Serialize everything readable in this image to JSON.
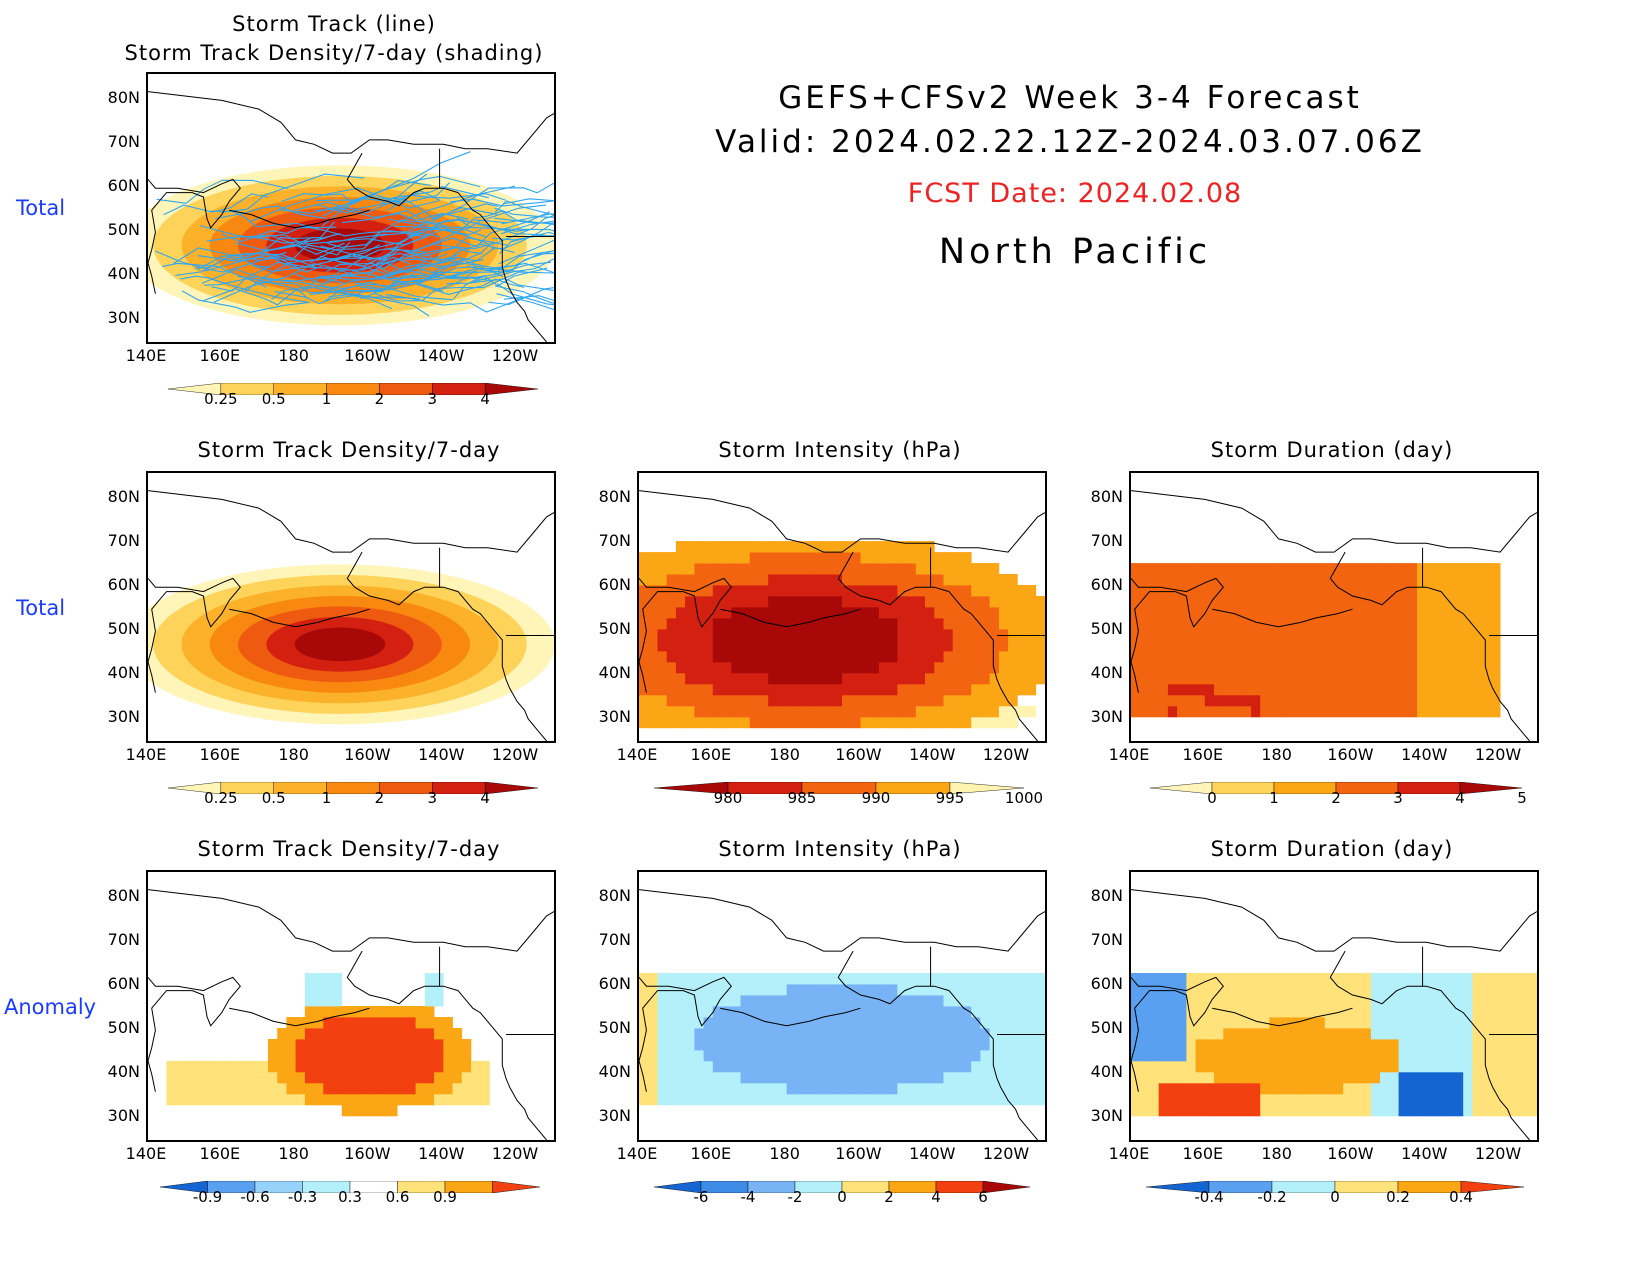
{
  "header": {
    "title": "GEFS+CFSv2 Week 3-4 Forecast",
    "valid": "Valid: 2024.02.22.12Z-2024.03.07.06Z",
    "fcst_date": "FCST Date: 2024.02.08",
    "region": "North Pacific"
  },
  "row_labels": [
    "Total",
    "Total",
    "Anomaly"
  ],
  "axes": {
    "lat_ticks": [
      "80N",
      "70N",
      "60N",
      "50N",
      "40N",
      "30N"
    ],
    "lon_ticks": [
      "140E",
      "160E",
      "180",
      "160W",
      "140W",
      "120W"
    ]
  },
  "panels": [
    {
      "id": "track",
      "title_lines": [
        "Storm Track (line)",
        "Storm Track Density/7-day (shading)"
      ],
      "colorbar": {
        "labels": [
          "0.25",
          "0.5",
          "1",
          "2",
          "3",
          "4"
        ],
        "colors": [
          "#fff5b8",
          "#fdd35a",
          "#fbb22a",
          "#f88810",
          "#ee5a10",
          "#d42010",
          "#a80808"
        ]
      }
    },
    {
      "id": "density",
      "title_lines": [
        "Storm Track Density/7-day"
      ],
      "colorbar": {
        "labels": [
          "0.25",
          "0.5",
          "1",
          "2",
          "3",
          "4"
        ],
        "colors": [
          "#fff5b8",
          "#fdd35a",
          "#fbb22a",
          "#f88810",
          "#ee5a10",
          "#d42010",
          "#a80808"
        ]
      }
    },
    {
      "id": "intensity",
      "title_lines": [
        "Storm Intensity (hPa)"
      ],
      "colorbar": {
        "labels": [
          "980",
          "985",
          "990",
          "995",
          "1000"
        ],
        "colors": [
          "#a80808",
          "#d42010",
          "#f26410",
          "#fba614",
          "#fff3b0"
        ]
      }
    },
    {
      "id": "duration",
      "title_lines": [
        "Storm Duration (day)"
      ],
      "colorbar": {
        "labels": [
          "0",
          "1",
          "2",
          "3",
          "4",
          "5"
        ],
        "colors": [
          "#fff5b8",
          "#fdd35a",
          "#fba614",
          "#f26410",
          "#d42010",
          "#a80808"
        ]
      }
    },
    {
      "id": "density_anom",
      "title_lines": [
        "Storm Track Density/7-day"
      ],
      "colorbar": {
        "labels": [
          "-0.9",
          "-0.6",
          "-0.3",
          "0.3",
          "0.6",
          "0.9"
        ],
        "colors": [
          "#1464d2",
          "#5aa0f0",
          "#96d2fa",
          "#b4f0fa",
          "#ffffff",
          "#ffe27a",
          "#fba614",
          "#f24010"
        ]
      }
    },
    {
      "id": "intensity_anom",
      "title_lines": [
        "Storm Intensity (hPa)"
      ],
      "colorbar": {
        "labels": [
          "-6",
          "-4",
          "-2",
          "0",
          "2",
          "4",
          "6"
        ],
        "colors": [
          "#1464d2",
          "#3c8ce6",
          "#78b4f5",
          "#b4f0fa",
          "#ffe27a",
          "#fba614",
          "#f24010",
          "#a80808"
        ]
      }
    },
    {
      "id": "duration_anom",
      "title_lines": [
        "Storm Duration (day)"
      ],
      "colorbar": {
        "labels": [
          "-0.4",
          "-0.2",
          "0",
          "0.2",
          "0.4"
        ],
        "colors": [
          "#1464d2",
          "#5aa0f0",
          "#b4f0fa",
          "#ffe27a",
          "#fba614",
          "#f24010"
        ]
      }
    }
  ]
}
